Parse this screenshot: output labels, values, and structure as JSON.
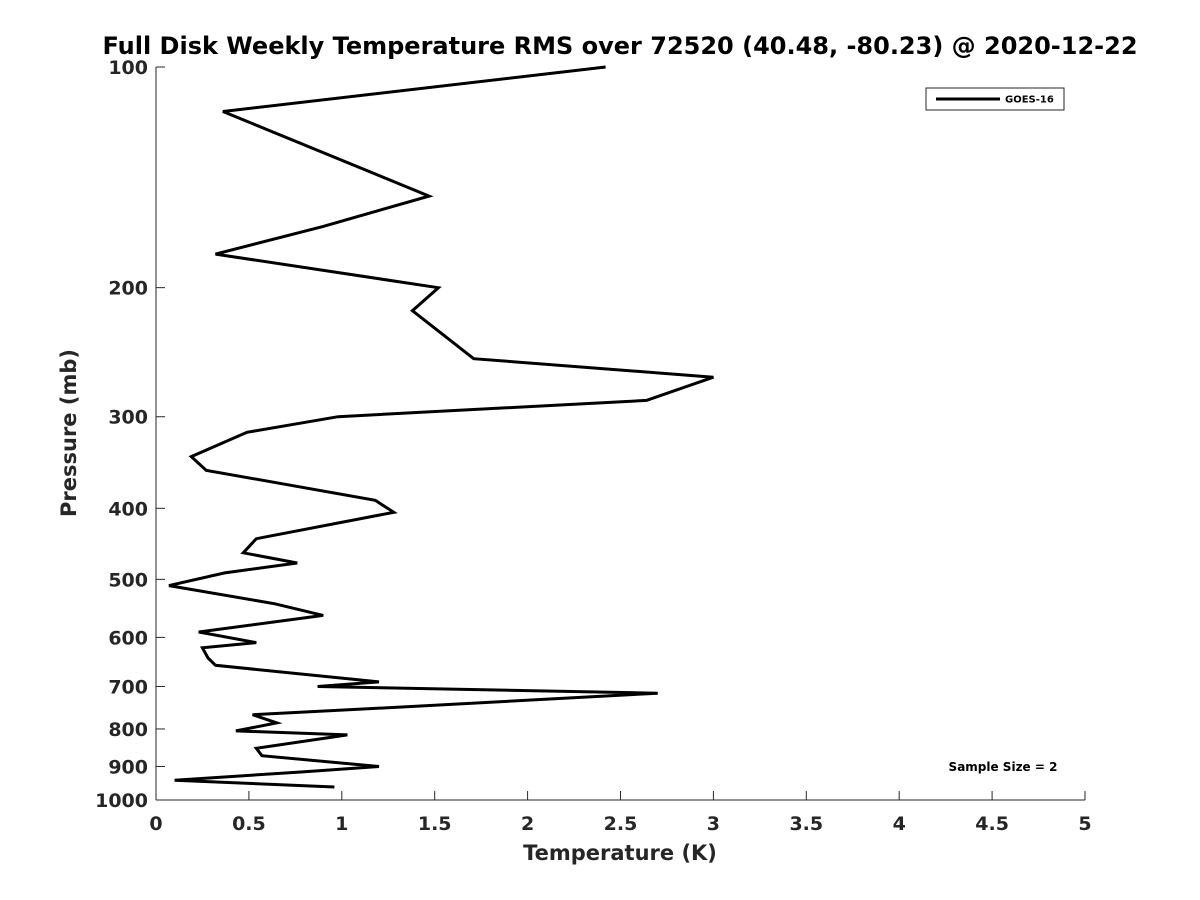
{
  "chart_data": {
    "type": "line",
    "title": "Full Disk Weekly Temperature RMS over 72520 (40.48, -80.23) @ 2020-12-22",
    "xlabel": "Temperature (K)",
    "ylabel": "Pressure (mb)",
    "xlim": [
      0,
      5
    ],
    "ylim": [
      100,
      1000
    ],
    "y_scale": "log",
    "y_reversed": true,
    "x_ticks": [
      "0",
      "0.5",
      "1",
      "1.5",
      "2",
      "2.5",
      "3",
      "3.5",
      "4",
      "4.5",
      "5"
    ],
    "y_ticks": [
      "100",
      "200",
      "300",
      "400",
      "500",
      "600",
      "700",
      "800",
      "900",
      "1000"
    ],
    "grid": false,
    "legend": "top-right",
    "series": [
      {
        "name": "GOES-16",
        "color": "#000000",
        "x": [
          2.42,
          0.36,
          1.47,
          0.9,
          0.32,
          1.52,
          1.38,
          1.71,
          3.0,
          2.64,
          0.98,
          0.49,
          0.19,
          0.27,
          1.18,
          1.28,
          0.54,
          0.47,
          0.76,
          0.37,
          0.07,
          0.64,
          0.9,
          0.23,
          0.54,
          0.25,
          0.28,
          0.32,
          1.2,
          0.87,
          2.7,
          1.18,
          0.52,
          0.65,
          0.43,
          1.03,
          0.54,
          0.57,
          1.2,
          0.8,
          0.1,
          0.96
        ],
        "y": [
          100,
          115,
          150,
          165,
          180,
          200,
          215,
          250,
          265,
          285,
          300,
          315,
          340,
          355,
          390,
          405,
          440,
          460,
          475,
          490,
          510,
          540,
          560,
          590,
          610,
          620,
          640,
          655,
          690,
          700,
          715,
          750,
          765,
          785,
          805,
          815,
          850,
          870,
          900,
          915,
          940,
          960
        ]
      }
    ],
    "annotations": [
      "Sample Size = 2"
    ]
  }
}
